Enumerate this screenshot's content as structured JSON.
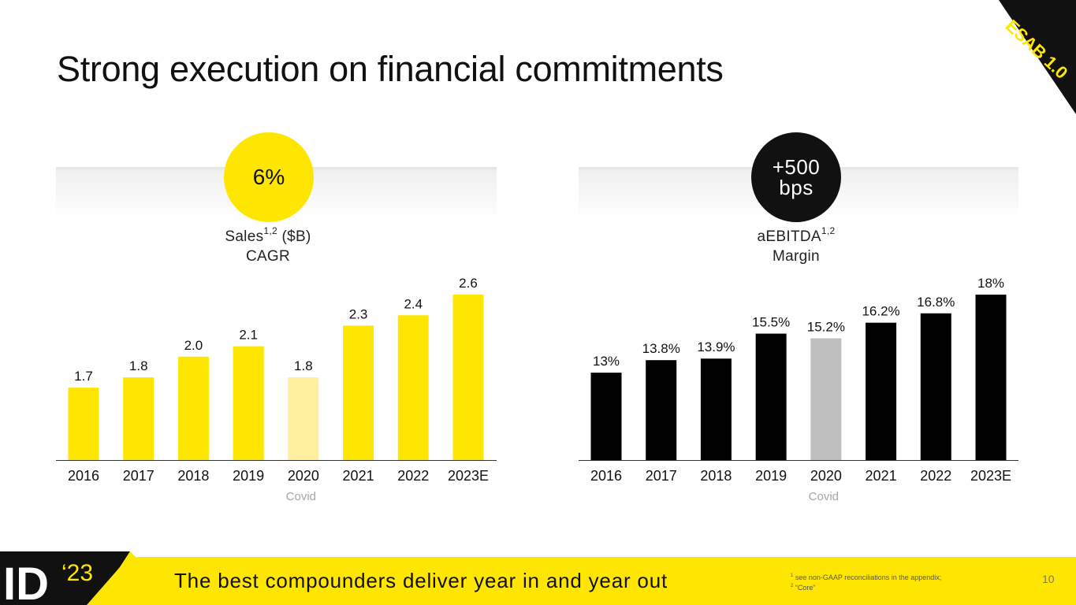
{
  "slide": {
    "title": "Strong execution on financial commitments",
    "corner_tag": "ESAB 1.0",
    "tagline": "The best compounders deliver year in and year out",
    "logo_text": "ID",
    "logo_year": "‘23",
    "footnote_1_mark": "1",
    "footnote_1": "see non-GAAP reconciliations in the appendix;",
    "footnote_2_mark": "2",
    "footnote_2": "“Core”",
    "page_number": "10"
  },
  "colors": {
    "brand_yellow": "#ffe600",
    "covid_yellow": "#fff0a0",
    "black": "#000000",
    "covid_grey": "#bfbfbf"
  },
  "left_panel": {
    "bubble": "6%",
    "metric_line1": "Sales",
    "metric_sup": "1,2",
    "metric_unit": " ($B)",
    "metric_line2": "CAGR",
    "covid_label": "Covid"
  },
  "right_panel": {
    "bubble": "+500\nbps",
    "metric_line1": "aEBITDA",
    "metric_sup": "1,2",
    "metric_line2": "Margin",
    "covid_label": "Covid"
  },
  "chart_data": [
    {
      "type": "bar",
      "title": "Sales ($B)",
      "categories": [
        "2016",
        "2017",
        "2018",
        "2019",
        "2020",
        "2021",
        "2022",
        "2023E"
      ],
      "values": [
        1.7,
        1.8,
        2.0,
        2.1,
        1.8,
        2.3,
        2.4,
        2.6
      ],
      "labels": [
        "1.7",
        "1.8",
        "2.0",
        "2.1",
        "1.8",
        "2.3",
        "2.4",
        "2.6"
      ],
      "highlight_category": "2020",
      "highlight_note": "Covid",
      "ylim": [
        1.0,
        2.6
      ],
      "grid": false
    },
    {
      "type": "bar",
      "title": "aEBITDA Margin",
      "categories": [
        "2016",
        "2017",
        "2018",
        "2019",
        "2020",
        "2021",
        "2022",
        "2023E"
      ],
      "values": [
        13.0,
        13.8,
        13.9,
        15.5,
        15.2,
        16.2,
        16.8,
        18.0
      ],
      "labels": [
        "13%",
        "13.8%",
        "13.9%",
        "15.5%",
        "15.2%",
        "16.2%",
        "16.8%",
        "18%"
      ],
      "highlight_category": "2020",
      "highlight_note": "Covid",
      "ylim": [
        7.4,
        18.0
      ],
      "grid": false
    }
  ]
}
